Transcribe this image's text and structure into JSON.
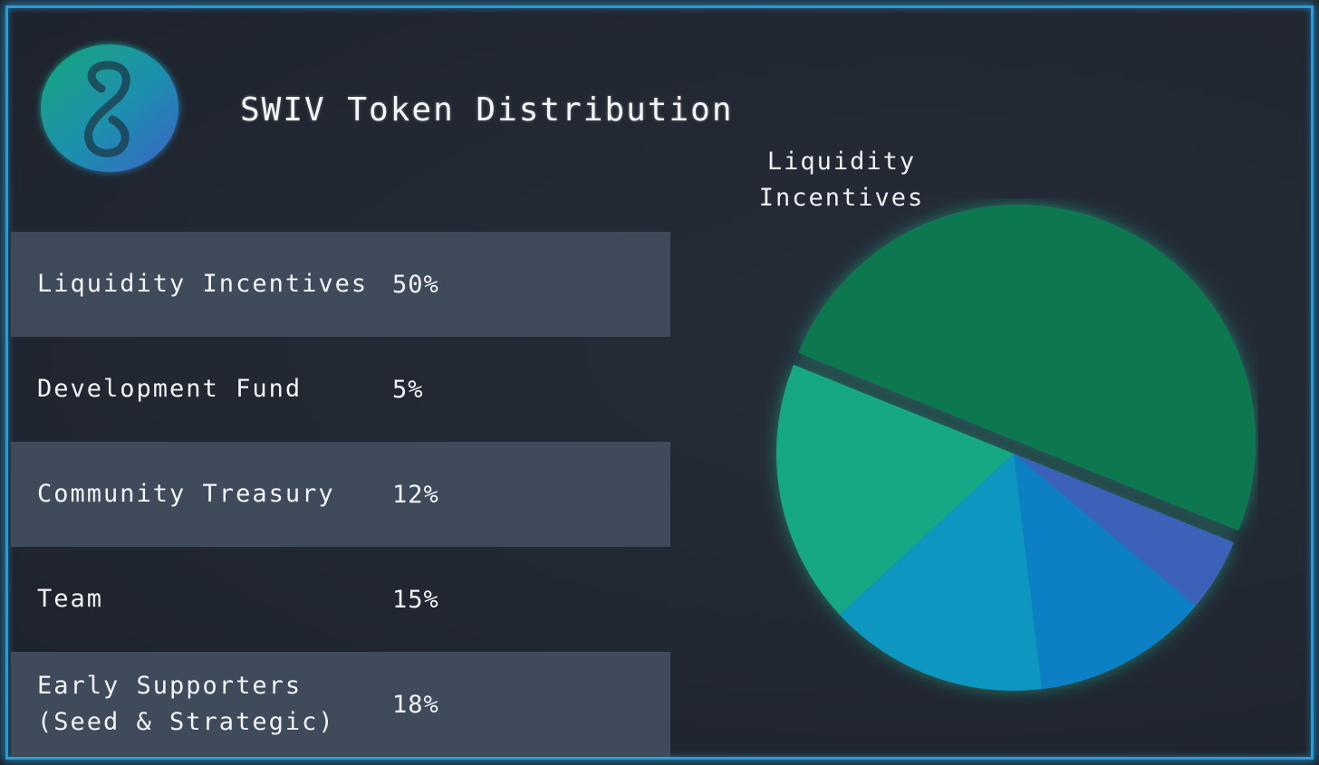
{
  "header": {
    "title": "SWIV Token Distribution"
  },
  "colors": {
    "background": "#222832",
    "frame": "#2b9bd6",
    "row_shade": "#3f4a5b",
    "liquidity": "#11784f",
    "development": "#3a62b8",
    "community": "#0a7fc4",
    "team": "#0a96c0",
    "early_supporters": "#14a784"
  },
  "table": {
    "rows": [
      {
        "label": "Liquidity Incentives",
        "value": "50%"
      },
      {
        "label": "Development Fund",
        "value": "5%"
      },
      {
        "label": "Community Treasury",
        "value": "12%"
      },
      {
        "label": "Team",
        "value": "15%"
      },
      {
        "label": "Early Supporters",
        "label2": "(Seed & Strategic)",
        "value": "18%"
      }
    ]
  },
  "chart_data": {
    "type": "pie",
    "title": "SWIV Token Distribution",
    "categories": [
      "Liquidity Incentives",
      "Development Fund",
      "Community Treasury",
      "Team",
      "Early Supporters (Seed & Strategic)"
    ],
    "values": [
      50,
      5,
      12,
      15,
      18
    ],
    "exploded": [
      "Liquidity Incentives"
    ],
    "annotation_line1": "Liquidity",
    "annotation_line2": "Incentives"
  }
}
